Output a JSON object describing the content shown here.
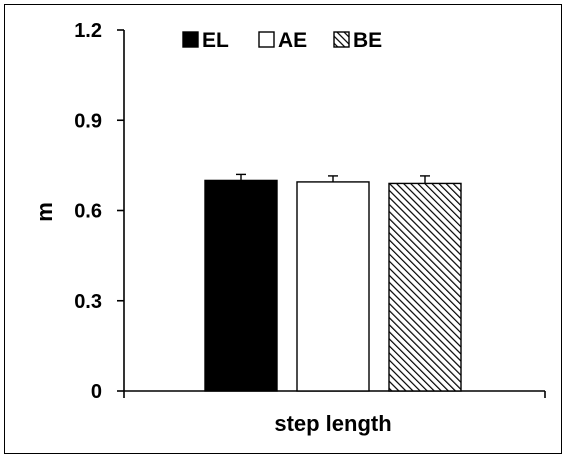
{
  "chart_data": {
    "type": "bar",
    "title": "",
    "xlabel": "step length",
    "ylabel": "m",
    "ylim": [
      0,
      1.2
    ],
    "yticks": [
      0,
      0.3,
      0.6,
      0.9,
      1.2
    ],
    "ytick_labels": [
      "0",
      "0.3",
      "0.6",
      "0.9",
      "1.2"
    ],
    "grid": false,
    "legend_position": "top",
    "categories": [
      "step length"
    ],
    "series": [
      {
        "name": "EL",
        "values": [
          0.7
        ],
        "error": [
          0.02
        ],
        "color": "#000000",
        "pattern": "solid"
      },
      {
        "name": "AE",
        "values": [
          0.695
        ],
        "error": [
          0.02
        ],
        "color": "#ffffff",
        "pattern": "open"
      },
      {
        "name": "BE",
        "values": [
          0.69
        ],
        "error": [
          0.025
        ],
        "color": "#000000",
        "pattern": "hatched"
      }
    ]
  }
}
